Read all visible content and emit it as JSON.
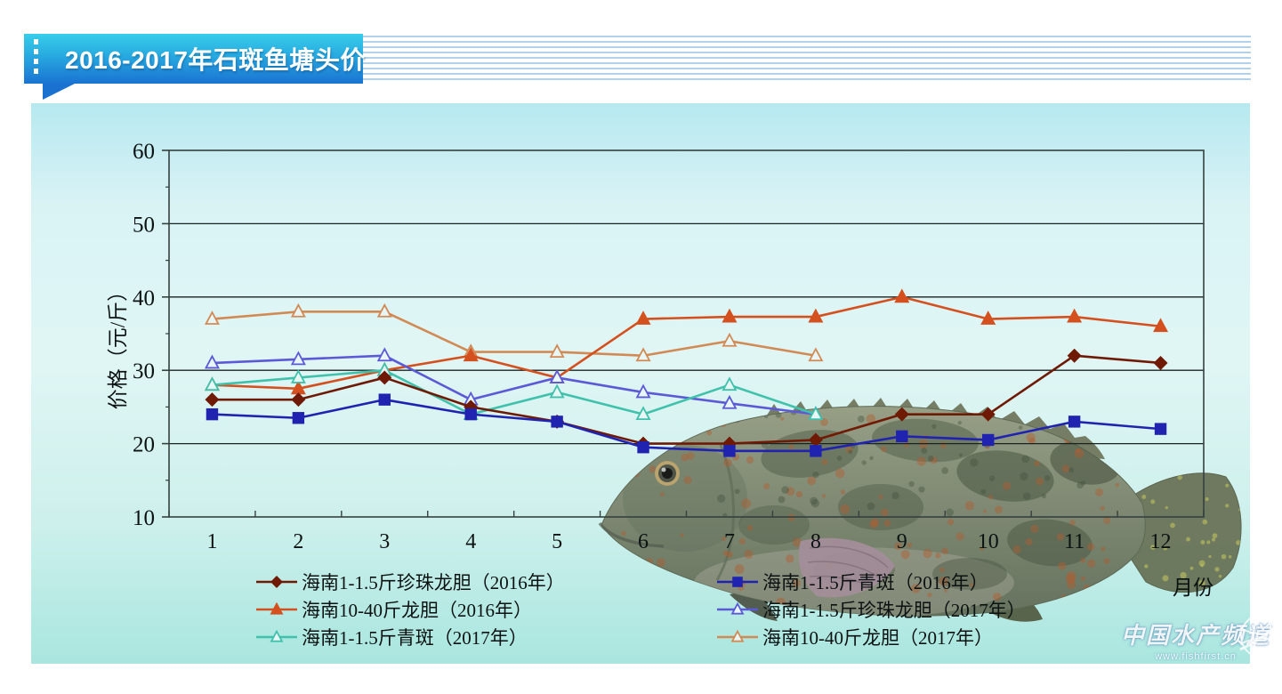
{
  "header": {
    "title": "2016-2017年石斑鱼塘头价"
  },
  "chart_data": {
    "type": "line",
    "title": "",
    "xlabel": "月份",
    "ylabel": "价格（元/斤）",
    "x": [
      1,
      2,
      3,
      4,
      5,
      6,
      7,
      8,
      9,
      10,
      11,
      12
    ],
    "ylim": [
      10,
      60
    ],
    "y_ticks": [
      10,
      20,
      30,
      40,
      50,
      60
    ],
    "grid": "horizontal",
    "legend_position": "bottom-two-columns",
    "series": [
      {
        "name": "海南1-1.5斤珍珠龙胆（2016年）",
        "color": "#6e1a05",
        "marker": "diamond",
        "filled": true,
        "values": [
          26,
          26,
          29,
          25,
          23,
          20,
          20,
          20.5,
          24,
          24,
          32,
          31
        ]
      },
      {
        "name": "海南1-1.5斤青斑（2016年）",
        "color": "#2023b0",
        "marker": "square",
        "filled": true,
        "values": [
          24,
          23.5,
          26,
          24,
          23,
          19.5,
          19,
          19,
          21,
          20.5,
          23,
          22
        ]
      },
      {
        "name": "海南10-40斤龙胆（2016年）",
        "color": "#d4501e",
        "marker": "triangle",
        "filled": true,
        "values": [
          28,
          27.5,
          30,
          32,
          29,
          37,
          37.3,
          37.3,
          40,
          37,
          37.3,
          36
        ]
      },
      {
        "name": "海南1-1.5斤珍珠龙胆（2017年）",
        "color": "#5b59d6",
        "marker": "triangle",
        "filled": false,
        "values": [
          31,
          31.5,
          32,
          26,
          29,
          27,
          25.5,
          24
        ]
      },
      {
        "name": "海南1-1.5斤青斑（2017年）",
        "color": "#3fc1ab",
        "marker": "triangle",
        "filled": false,
        "values": [
          28,
          29,
          30,
          24,
          27,
          24,
          28,
          24
        ]
      },
      {
        "name": "海南10-40斤龙胆（2017年）",
        "color": "#d28a55",
        "marker": "triangle",
        "filled": false,
        "values": [
          37,
          38,
          38,
          32.5,
          32.5,
          32,
          34,
          32
        ]
      }
    ]
  },
  "legend": {
    "columns": [
      [
        0,
        2,
        4
      ],
      [
        1,
        3,
        5
      ]
    ]
  },
  "watermark": {
    "title": "中国水产频道",
    "url": "www.fishfirst.cn"
  }
}
